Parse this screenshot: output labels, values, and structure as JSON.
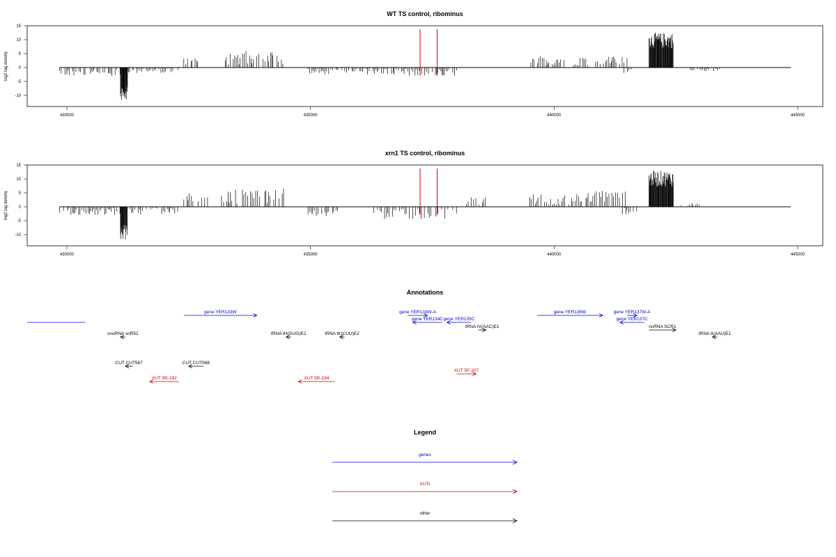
{
  "chart_data": [
    {
      "type": "bar",
      "title": "WT TS control, ribominus",
      "ylabel": "log2 tag density",
      "xlim": [
        429800,
        444900
      ],
      "ylim": [
        -14,
        15
      ],
      "x_ticks": [
        430000,
        435000,
        440000,
        445000
      ],
      "y_ticks": [
        15,
        10,
        5,
        0,
        -5,
        -10
      ],
      "markers": {
        "color": "#cc0000",
        "x": [
          437250,
          437600
        ]
      },
      "segments": [
        {
          "x0": 429850,
          "x1": 431300,
          "sign": -1,
          "amp": 3
        },
        {
          "x0": 431100,
          "x1": 431250,
          "sign": -1,
          "amp": 12
        },
        {
          "x0": 431250,
          "x1": 432300,
          "sign": -1,
          "amp": 2
        },
        {
          "x0": 432400,
          "x1": 432700,
          "sign": 1,
          "amp": 4
        },
        {
          "x0": 433250,
          "x1": 434450,
          "sign": 1,
          "amp": 6
        },
        {
          "x0": 434950,
          "x1": 437000,
          "sign": -1,
          "amp": 2.5
        },
        {
          "x0": 437000,
          "x1": 438000,
          "sign": -1,
          "amp": 3
        },
        {
          "x0": 439500,
          "x1": 440400,
          "sign": 1,
          "amp": 4.5
        },
        {
          "x0": 440400,
          "x1": 441500,
          "sign": 1,
          "amp": 4
        },
        {
          "x0": 441400,
          "x1": 441600,
          "sign": -1,
          "amp": 2.5
        },
        {
          "x0": 441950,
          "x1": 442450,
          "sign": 1,
          "amp": 12.5
        },
        {
          "x0": 442800,
          "x1": 443400,
          "sign": -1,
          "amp": 1.5
        }
      ]
    },
    {
      "type": "bar",
      "title": "xrn1 TS control, ribominus",
      "ylabel": "log2 tag density",
      "xlim": [
        429800,
        444900
      ],
      "ylim": [
        -14,
        15
      ],
      "x_ticks": [
        430000,
        435000,
        440000,
        445000
      ],
      "y_ticks": [
        15,
        10,
        5,
        0,
        -5,
        -10
      ],
      "markers": {
        "color": "#cc0000",
        "x": [
          437250,
          437600
        ]
      },
      "segments": [
        {
          "x0": 429850,
          "x1": 431300,
          "sign": -1,
          "amp": 3
        },
        {
          "x0": 431100,
          "x1": 431250,
          "sign": -1,
          "amp": 12
        },
        {
          "x0": 431300,
          "x1": 432300,
          "sign": -1,
          "amp": 3
        },
        {
          "x0": 432400,
          "x1": 432900,
          "sign": 1,
          "amp": 5
        },
        {
          "x0": 433150,
          "x1": 434450,
          "sign": 1,
          "amp": 7
        },
        {
          "x0": 434950,
          "x1": 435600,
          "sign": -1,
          "amp": 3.5
        },
        {
          "x0": 436300,
          "x1": 438000,
          "sign": -1,
          "amp": 4.5
        },
        {
          "x0": 438200,
          "x1": 438600,
          "sign": 1,
          "amp": 3.5
        },
        {
          "x0": 439500,
          "x1": 440400,
          "sign": 1,
          "amp": 4.5
        },
        {
          "x0": 440400,
          "x1": 441500,
          "sign": 1,
          "amp": 6
        },
        {
          "x0": 441400,
          "x1": 441700,
          "sign": -1,
          "amp": 3
        },
        {
          "x0": 441950,
          "x1": 442450,
          "sign": 1,
          "amp": 13
        },
        {
          "x0": 442600,
          "x1": 443000,
          "sign": 1,
          "amp": 1.5
        }
      ]
    }
  ],
  "annotations": {
    "title": "Annotations",
    "colors": {
      "genes": "#0000cc",
      "xuts": "#cc0000",
      "other": "#000000"
    },
    "items": [
      {
        "label": "gene YER133W",
        "kind": "genes",
        "dir": 1,
        "x0": 432400,
        "x1": 433900,
        "row": 0
      },
      {
        "label": "gene YER133W-A",
        "kind": "genes",
        "dir": 1,
        "x0": 437000,
        "x1": 437400,
        "row": 0
      },
      {
        "label": "gene YER134C",
        "kind": "genes",
        "dir": -1,
        "x0": 437100,
        "x1": 437700,
        "row": 1
      },
      {
        "label": "gene YER135C",
        "kind": "genes",
        "dir": -1,
        "x0": 437800,
        "x1": 438300,
        "row": 1
      },
      {
        "label": "gene YER136W",
        "kind": "genes",
        "dir": 1,
        "x0": 439650,
        "x1": 441000,
        "row": 0
      },
      {
        "label": "gene YER137W-A",
        "kind": "genes",
        "dir": 1,
        "x0": 441500,
        "x1": 441700,
        "row": 0
      },
      {
        "label": "gene YER137C",
        "kind": "genes",
        "dir": -1,
        "x0": 441350,
        "x1": 441850,
        "row": 1
      },
      {
        "label": "tRNA tV(AAC)E1",
        "kind": "other",
        "dir": 1,
        "x0": 438450,
        "x1": 438600,
        "row": 2
      },
      {
        "label": "ncRNA SCR1",
        "kind": "other",
        "dir": 1,
        "x0": 441950,
        "x1": 442500,
        "row": 2
      },
      {
        "label": "snoRNA snR52",
        "kind": "other",
        "dir": -1,
        "x0": 431100,
        "x1": 431200,
        "row": 3
      },
      {
        "label": "tRNA tH(GUG)E2",
        "kind": "other",
        "dir": -1,
        "x0": 434500,
        "x1": 434600,
        "row": 3
      },
      {
        "label": "tRNA tK(CUU)E2",
        "kind": "other",
        "dir": -1,
        "x0": 435600,
        "x1": 435700,
        "row": 3
      },
      {
        "label": "tRNA tI(AAU)E1",
        "kind": "other",
        "dir": -1,
        "x0": 443250,
        "x1": 443350,
        "row": 3
      },
      {
        "label": "CUT CUT567",
        "kind": "other",
        "dir": -1,
        "x0": 431200,
        "x1": 431350,
        "row": 4
      },
      {
        "label": "CUT CUT568",
        "kind": "other",
        "dir": -1,
        "x0": 432500,
        "x1": 432800,
        "row": 4
      },
      {
        "label": "XUT 5F-207",
        "kind": "xuts",
        "dir": 1,
        "x0": 438000,
        "x1": 438400,
        "row": 5
      },
      {
        "label": "XUT 5R-192",
        "kind": "xuts",
        "dir": -1,
        "x0": 431700,
        "x1": 432300,
        "row": 6
      },
      {
        "label": "XUT 5R-194",
        "kind": "xuts",
        "dir": -1,
        "x0": 434750,
        "x1": 435500,
        "row": 6
      }
    ]
  },
  "legend": {
    "title": "Legend",
    "entries": [
      {
        "label": "genes",
        "color": "#0000cc"
      },
      {
        "label": "XUTs",
        "color": "#cc0000"
      },
      {
        "label": "other",
        "color": "#000000"
      }
    ]
  }
}
